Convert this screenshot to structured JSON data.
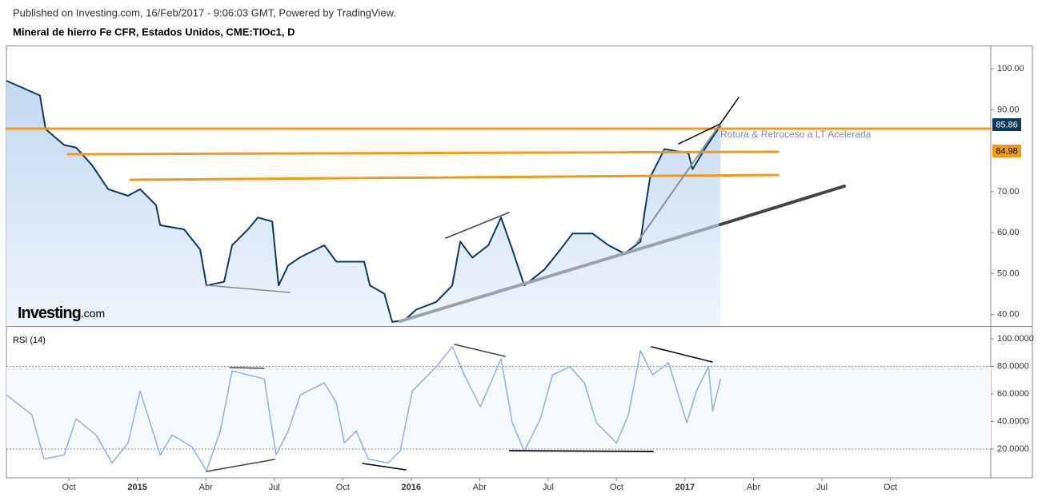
{
  "header": {
    "published": "Published on Investing.com, 16/Feb/2017 - 9:06:03 GMT, Powered by TradingView.",
    "instrument": "Mineral de hierro Fe CFR, Estados Unidos, CME:TIOc1, D"
  },
  "logo": {
    "brand": "Investing",
    "suffix": ".com"
  },
  "chart_data": [
    {
      "type": "area",
      "annotation": "Rotura & Retroceso a LT Acelerada",
      "price_labels": [
        "85.86",
        "84.98"
      ],
      "x": [
        0.26,
        1.73,
        1.98,
        2.79,
        3.31,
        4.01,
        4.72,
        5.59,
        6.12,
        6.82,
        7.0,
        8.05,
        8.75,
        9.03,
        9.8,
        10.15,
        10.85,
        11.28,
        11.91,
        12.19,
        12.61,
        13.14,
        14.19,
        14.72,
        15.94,
        16.19,
        16.82,
        17.17,
        17.7,
        18.22,
        19.1,
        19.8,
        20.15,
        20.68,
        21.38,
        21.94,
        22.43,
        22.96,
        23.84,
        24.54,
        25.07,
        25.94,
        26.65,
        27.35,
        28.05,
        28.22,
        28.47,
        29.1,
        30.15,
        30.33,
        30.86,
        31.21,
        31.56
      ],
      "series": [
        {
          "name": "Mineral de hierro Fe CFR",
          "color": "#0d3a5c",
          "values": [
            97.1,
            93.5,
            85.3,
            81.4,
            80.8,
            76.5,
            70.6,
            69,
            70.6,
            66.7,
            61.8,
            60.8,
            55.9,
            47.1,
            48,
            56.9,
            60.8,
            63.7,
            62.7,
            47.1,
            52,
            54,
            56.9,
            52.9,
            52.9,
            47.1,
            45.1,
            38.2,
            38.6,
            41.2,
            43.1,
            47.1,
            57.8,
            53.9,
            56.9,
            63.7,
            55.9,
            47.1,
            51,
            55.9,
            59.8,
            59.8,
            56.9,
            54.9,
            57.8,
            64.7,
            73.5,
            80.4,
            79.4,
            75.5,
            80.4,
            83.3,
            86.1
          ]
        }
      ],
      "xlim": [
        0.26,
        43.4
      ],
      "ylim": [
        37.2,
        105.5
      ],
      "yticks": [
        {
          "value": 40,
          "label": "40.00"
        },
        {
          "value": 50,
          "label": "50.00"
        },
        {
          "value": 60,
          "label": "60.00"
        },
        {
          "value": 70,
          "label": "70.00"
        },
        {
          "value": 90,
          "label": "90.00"
        },
        {
          "value": 100,
          "label": "100.00"
        }
      ]
    },
    {
      "type": "line",
      "title": "RSI (14)",
      "x": [
        0.26,
        1.38,
        1.91,
        2.79,
        3.31,
        4.19,
        4.89,
        5.59,
        6.12,
        7.0,
        7.52,
        8.4,
        9.03,
        9.63,
        10.15,
        10.85,
        11.56,
        12.08,
        12.61,
        13.14,
        14.19,
        14.72,
        15.07,
        15.59,
        16.12,
        16.98,
        17.52,
        18.05,
        19.1,
        19.8,
        20.33,
        21.03,
        21.94,
        22.43,
        22.96,
        23.66,
        24.19,
        24.96,
        25.59,
        26.12,
        27.0,
        27.52,
        28.05,
        28.58,
        29.28,
        30.08,
        30.5,
        31.03,
        31.21,
        31.56
      ],
      "series": [
        {
          "name": "RSI (14)",
          "color": "#8eb0e2",
          "values": [
            59.3,
            44.8,
            12.8,
            15.7,
            41.9,
            30.2,
            9.9,
            24.4,
            62.2,
            15.7,
            30.2,
            21.5,
            4.1,
            33.1,
            76.7,
            73.8,
            70.9,
            15.7,
            33.1,
            59.3,
            68,
            53.5,
            24.4,
            33.1,
            12.8,
            9.9,
            18.6,
            62.2,
            79.7,
            94.2,
            73.8,
            50.6,
            85.5,
            39,
            18.6,
            41.9,
            73.8,
            79.7,
            68,
            39,
            24.4,
            44.8,
            91.3,
            73.8,
            82.6,
            39,
            62.2,
            79.7,
            47.7,
            70.9
          ]
        }
      ],
      "band": [
        20,
        80
      ],
      "xlim": [
        0.26,
        43.4
      ],
      "ylim": [
        -0.9,
        108.7
      ],
      "yticks": [
        {
          "value": 20,
          "label": "20.0000"
        },
        {
          "value": 40,
          "label": "40.0000"
        },
        {
          "value": 60,
          "label": "60.0000"
        },
        {
          "value": 80,
          "label": "80.0000"
        },
        {
          "value": 100,
          "label": "100.0000"
        }
      ],
      "xticks": [
        {
          "value": 3,
          "label": "Oct"
        },
        {
          "value": 6,
          "label": "2015"
        },
        {
          "value": 9,
          "label": "Abr"
        },
        {
          "value": 12,
          "label": "Jul"
        },
        {
          "value": 15,
          "label": "Oct"
        },
        {
          "value": 18,
          "label": "2016"
        },
        {
          "value": 21,
          "label": "Abr"
        },
        {
          "value": 24,
          "label": "Jul"
        },
        {
          "value": 27,
          "label": "Oct"
        },
        {
          "value": 30,
          "label": "2017"
        },
        {
          "value": 33,
          "label": "Abr"
        },
        {
          "value": 36,
          "label": "Jul"
        },
        {
          "value": 39,
          "label": "Oct"
        }
      ]
    }
  ]
}
